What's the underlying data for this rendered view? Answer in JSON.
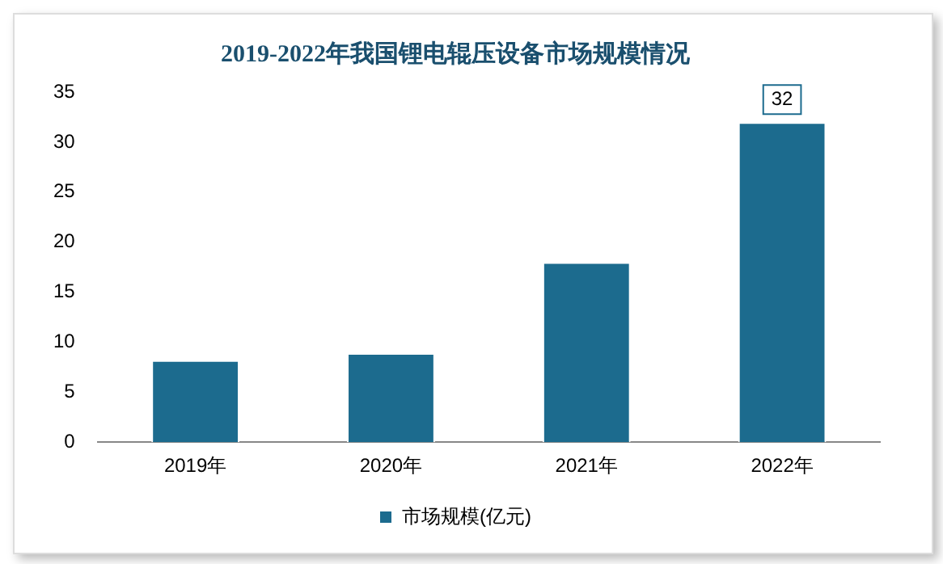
{
  "chart_data": {
    "type": "bar",
    "title": "2019-2022年我国锂电辊压设备市场规模情况",
    "categories": [
      "2019年",
      "2020年",
      "2021年",
      "2022年"
    ],
    "series": [
      {
        "name": "市场规模(亿元)",
        "color": "#1c6b8e",
        "values": [
          8.2,
          8.9,
          18,
          32
        ],
        "value_labels": [
          null,
          null,
          null,
          "32"
        ]
      }
    ],
    "ylim": [
      0,
      35
    ],
    "yticks": [
      0,
      5,
      10,
      15,
      20,
      25,
      30,
      35
    ],
    "grid": false,
    "legend": "bottom"
  }
}
